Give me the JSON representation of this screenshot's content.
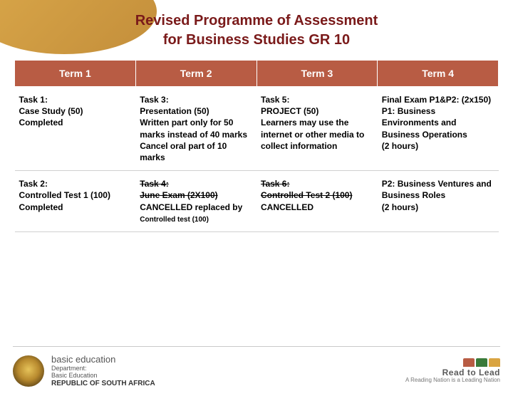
{
  "title_line1": "Revised Programme of Assessment",
  "title_line2": "for Business Studies  GR 10",
  "headers": [
    "Term 1",
    "Term 2",
    "Term 3",
    "Term 4"
  ],
  "row1": {
    "c1": "Task 1:\n Case Study (50)\nCompleted",
    "c2": "Task 3:\nPresentation (50)\nWritten part only for 50 marks instead of 40 marks\nCancel oral part of 10 marks",
    "c3": "Task 5:\n PROJECT (50)\nLearners may use the internet or other media to collect information",
    "c4": " Final Exam P1&P2: (2x150)\nP1: Business Environments and Business Operations\n (2 hours)"
  },
  "row2": {
    "c1": "Task 2:\n Controlled Test 1 (100)\nCompleted",
    "c2_strike1": "Task 4:",
    "c2_strike2": "June Exam (2X100)",
    "c2_rest": "CANCELLED  replaced by",
    "c2_small": "Controlled test (100)",
    "c3_strike1": "Task 6:",
    "c3_strike2": "Controlled Test 2 (100)",
    "c3_rest": "CANCELLED",
    "c4": "P2: Business Ventures and Business Roles\n (2 hours)"
  },
  "footer": {
    "dept_big": "basic education",
    "dept_mid1": "Department:",
    "dept_mid2": "Basic Education",
    "dept_bold": "REPUBLIC OF SOUTH AFRICA",
    "rtl_t1": "Read to Lead",
    "rtl_t2": "A Reading Nation is a Leading Nation"
  },
  "colors": {
    "title": "#7a1a1a",
    "header_bg": "#b85c44",
    "header_fg": "#ffffff",
    "curve": "#d9a441"
  }
}
